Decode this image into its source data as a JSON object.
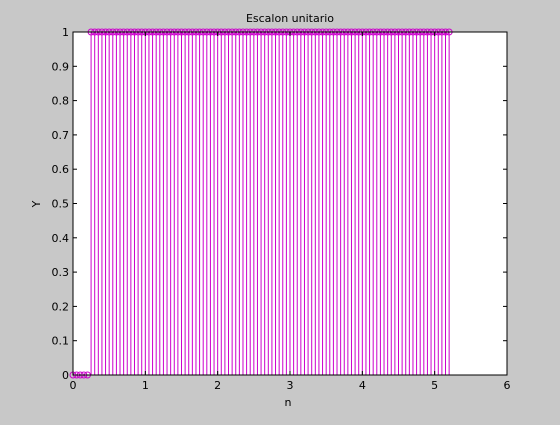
{
  "chart_data": {
    "type": "stem",
    "title": "Escalon unitario",
    "xlabel": "n",
    "ylabel": "Y",
    "xlim": [
      0,
      6
    ],
    "ylim": [
      0,
      1
    ],
    "xticks": [
      "0",
      "1",
      "2",
      "3",
      "4",
      "5",
      "6"
    ],
    "yticks": [
      "0",
      "0.1",
      "0.2",
      "0.3",
      "0.4",
      "0.5",
      "0.6",
      "0.7",
      "0.8",
      "0.9",
      "1"
    ],
    "grid": false,
    "marker": "o",
    "stem_color": "#cc00cc",
    "series": [
      {
        "x_start": 0.0,
        "x_step": 0.05,
        "x_end": 5.2,
        "step_at": 0.25,
        "value_before": 0,
        "value_after": 1
      }
    ]
  }
}
